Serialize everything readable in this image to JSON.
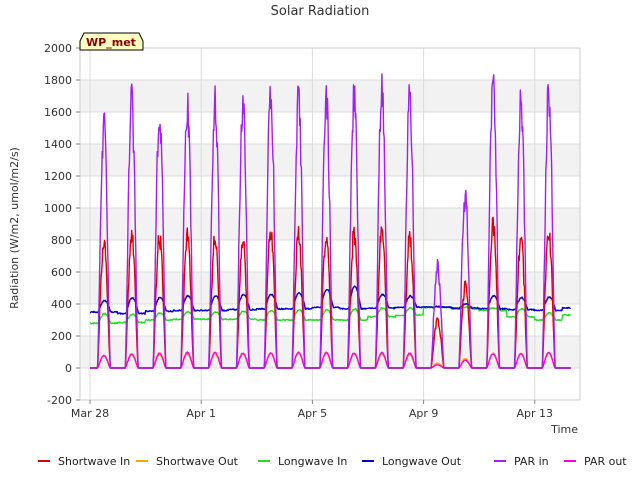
{
  "chart_data": {
    "type": "line",
    "title": "Solar Radiation",
    "xlabel": "Time",
    "ylabel": "Radiation (W/m2, umol/m2/s)",
    "badge": "WP_met",
    "x_start": "Mar 28",
    "x_end": "Apr 15",
    "ylim": [
      -200,
      2000
    ],
    "yticks": [
      -200,
      0,
      200,
      400,
      600,
      800,
      1000,
      1200,
      1400,
      1600,
      1800,
      2000
    ],
    "xticks": [
      {
        "label": "Mar 28",
        "day": 0
      },
      {
        "label": "Apr 1",
        "day": 4
      },
      {
        "label": "Apr 5",
        "day": 8
      },
      {
        "label": "Apr 9",
        "day": 12
      },
      {
        "label": "Apr 13",
        "day": 16
      }
    ],
    "grid": true,
    "legend_position": "bottom",
    "days": [
      "Mar 28",
      "Mar 29",
      "Mar 30",
      "Mar 31",
      "Apr 1",
      "Apr 2",
      "Apr 3",
      "Apr 4",
      "Apr 5",
      "Apr 6",
      "Apr 7",
      "Apr 8",
      "Apr 9",
      "Apr 10",
      "Apr 11",
      "Apr 12",
      "Apr 13",
      "Apr 14"
    ],
    "series": [
      {
        "name": "Shortwave In",
        "color": "#dd0000",
        "daily_peak": [
          860,
          900,
          880,
          880,
          880,
          870,
          940,
          910,
          920,
          900,
          940,
          890,
          320,
          560,
          960,
          880,
          930,
          0
        ]
      },
      {
        "name": "Shortwave Out",
        "color": "#ffa500",
        "daily_peak": [
          80,
          85,
          85,
          90,
          90,
          90,
          95,
          95,
          95,
          90,
          90,
          85,
          30,
          60,
          95,
          95,
          95,
          0
        ]
      },
      {
        "name": "Longwave In",
        "color": "#22dd22",
        "night_level": [
          280,
          285,
          300,
          305,
          305,
          305,
          300,
          300,
          300,
          300,
          320,
          330,
          380,
          370,
          360,
          320,
          300,
          330
        ],
        "day_peak": [
          340,
          335,
          345,
          350,
          350,
          355,
          360,
          365,
          365,
          370,
          375,
          375,
          380,
          380,
          375,
          370,
          345,
          345
        ]
      },
      {
        "name": "Longwave Out",
        "color": "#0000cc",
        "night_level": [
          350,
          340,
          355,
          360,
          360,
          365,
          370,
          370,
          380,
          370,
          375,
          380,
          380,
          375,
          370,
          365,
          360,
          375
        ],
        "day_peak": [
          420,
          440,
          440,
          450,
          450,
          460,
          460,
          470,
          490,
          510,
          460,
          450,
          385,
          400,
          450,
          440,
          445,
          0
        ]
      },
      {
        "name": "PAR in",
        "color": "#a020f0",
        "daily_peak": [
          1620,
          1780,
          1740,
          1760,
          1770,
          1760,
          1860,
          1810,
          1810,
          1810,
          1870,
          1810,
          690,
          1150,
          1940,
          1820,
          1850,
          0
        ]
      },
      {
        "name": "PAR out",
        "color": "#ff00dd",
        "daily_peak": [
          80,
          90,
          95,
          100,
          100,
          95,
          95,
          100,
          100,
          95,
          100,
          95,
          20,
          50,
          90,
          90,
          100,
          0
        ]
      }
    ]
  }
}
